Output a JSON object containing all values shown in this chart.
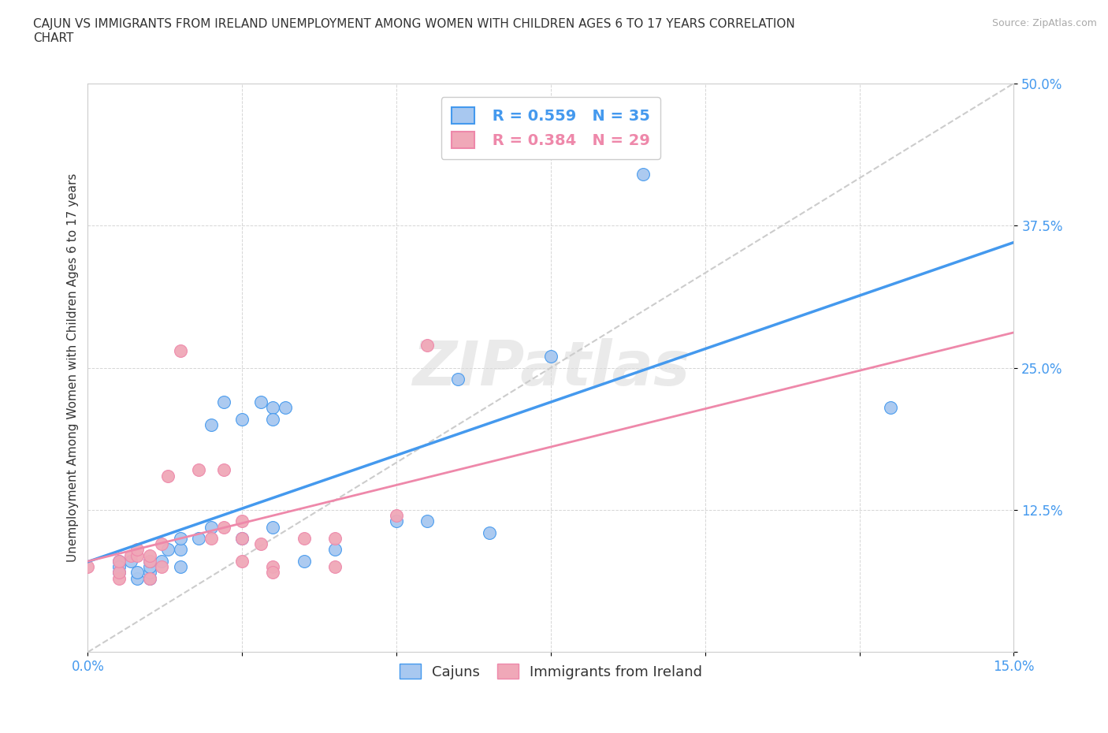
{
  "title": "CAJUN VS IMMIGRANTS FROM IRELAND UNEMPLOYMENT AMONG WOMEN WITH CHILDREN AGES 6 TO 17 YEARS CORRELATION\nCHART",
  "source_text": "Source: ZipAtlas.com",
  "xmin": 0.0,
  "xmax": 0.15,
  "ymin": 0.0,
  "ymax": 0.5,
  "watermark": "ZIPatlas",
  "legend_cajun_R": "R = 0.559",
  "legend_cajun_N": "N = 35",
  "legend_ireland_R": "R = 0.384",
  "legend_ireland_N": "N = 29",
  "cajun_color": "#a8c8f0",
  "ireland_color": "#f0a8b8",
  "cajun_line_color": "#4499ee",
  "ireland_line_color": "#ee88aa",
  "dashed_line_color": "#cccccc",
  "cajun_scatter": [
    [
      0.005,
      0.08
    ],
    [
      0.005,
      0.075
    ],
    [
      0.005,
      0.07
    ],
    [
      0.007,
      0.08
    ],
    [
      0.008,
      0.065
    ],
    [
      0.008,
      0.07
    ],
    [
      0.01,
      0.065
    ],
    [
      0.01,
      0.07
    ],
    [
      0.01,
      0.075
    ],
    [
      0.01,
      0.08
    ],
    [
      0.012,
      0.08
    ],
    [
      0.013,
      0.09
    ],
    [
      0.015,
      0.09
    ],
    [
      0.015,
      0.1
    ],
    [
      0.015,
      0.075
    ],
    [
      0.018,
      0.1
    ],
    [
      0.02,
      0.11
    ],
    [
      0.02,
      0.2
    ],
    [
      0.022,
      0.22
    ],
    [
      0.025,
      0.1
    ],
    [
      0.025,
      0.205
    ],
    [
      0.028,
      0.22
    ],
    [
      0.03,
      0.215
    ],
    [
      0.03,
      0.205
    ],
    [
      0.03,
      0.11
    ],
    [
      0.032,
      0.215
    ],
    [
      0.035,
      0.08
    ],
    [
      0.04,
      0.09
    ],
    [
      0.05,
      0.115
    ],
    [
      0.055,
      0.115
    ],
    [
      0.06,
      0.24
    ],
    [
      0.065,
      0.105
    ],
    [
      0.075,
      0.26
    ],
    [
      0.09,
      0.42
    ],
    [
      0.13,
      0.215
    ]
  ],
  "ireland_scatter": [
    [
      0.0,
      0.075
    ],
    [
      0.005,
      0.065
    ],
    [
      0.005,
      0.07
    ],
    [
      0.005,
      0.08
    ],
    [
      0.007,
      0.085
    ],
    [
      0.008,
      0.085
    ],
    [
      0.008,
      0.09
    ],
    [
      0.01,
      0.065
    ],
    [
      0.01,
      0.08
    ],
    [
      0.01,
      0.085
    ],
    [
      0.012,
      0.075
    ],
    [
      0.012,
      0.095
    ],
    [
      0.013,
      0.155
    ],
    [
      0.015,
      0.265
    ],
    [
      0.018,
      0.16
    ],
    [
      0.02,
      0.1
    ],
    [
      0.022,
      0.16
    ],
    [
      0.022,
      0.11
    ],
    [
      0.025,
      0.115
    ],
    [
      0.025,
      0.08
    ],
    [
      0.025,
      0.1
    ],
    [
      0.028,
      0.095
    ],
    [
      0.03,
      0.075
    ],
    [
      0.03,
      0.07
    ],
    [
      0.035,
      0.1
    ],
    [
      0.04,
      0.075
    ],
    [
      0.04,
      0.1
    ],
    [
      0.05,
      0.12
    ],
    [
      0.055,
      0.27
    ]
  ]
}
